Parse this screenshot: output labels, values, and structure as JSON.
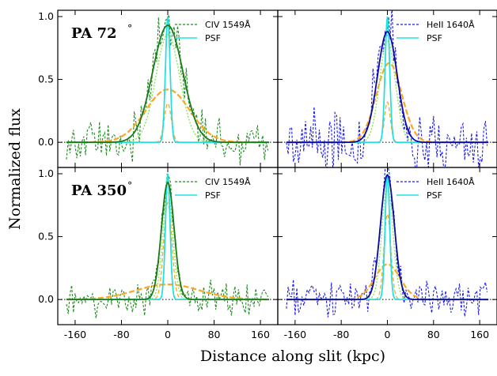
{
  "chart_data": {
    "type": "line",
    "xlabel": "Distance along slit (kpc)",
    "ylabel": "Normalized flux",
    "xlim": [
      -190,
      190
    ],
    "xticks": [
      -160,
      -80,
      0,
      80,
      160
    ],
    "yticks": [
      0.0,
      0.5,
      1.0
    ],
    "colors": {
      "civ_data": "#1e8c1e",
      "civ_fit": "#1a7a1a",
      "heii_data": "#1a1aee",
      "heii_fit": "#0a0aa0",
      "psf": "#22e0e0",
      "component": "#ffa520",
      "component2": "#88e850"
    },
    "panels": [
      {
        "id": "pa72-civ",
        "pa_label": "PA 72",
        "degree": "°",
        "ylim": [
          -0.2,
          1.05
        ],
        "show_pa": true,
        "legend": [
          "CIV 1549Å",
          "PSF"
        ],
        "line": "civ",
        "fit": {
          "amp": 0.93,
          "sigma": 26,
          "center": 0
        },
        "comp_broad": {
          "amp": 0.42,
          "sigma": 38,
          "center": 0
        },
        "comp_narrow": {
          "amp": 0.31,
          "sigma": 6,
          "center": 0
        },
        "noise_amp": 0.09
      },
      {
        "id": "pa72-heii",
        "ylim": [
          -0.2,
          1.05
        ],
        "show_pa": false,
        "legend": [
          "HeII 1640Å",
          "PSF"
        ],
        "line": "heii",
        "fit": {
          "amp": 0.88,
          "sigma": 17,
          "center": 0
        },
        "comp_broad": {
          "amp": 0.63,
          "sigma": 22,
          "center": 3
        },
        "comp_narrow": {
          "amp": 0.32,
          "sigma": 5,
          "center": 0
        },
        "noise_amp": 0.13
      },
      {
        "id": "pa350-civ",
        "pa_label": "PA 350",
        "degree": "°",
        "ylim": [
          -0.2,
          1.05
        ],
        "show_pa": true,
        "legend": [
          "CIV 1549Å",
          "PSF"
        ],
        "line": "civ",
        "fit": {
          "amp": 0.93,
          "sigma": 11,
          "center": 0
        },
        "comp_broad": {
          "amp": 0.12,
          "sigma": 55,
          "center": 0
        },
        "comp_narrow": {
          "amp": 0.77,
          "sigma": 7,
          "center": 0
        },
        "noise_amp": 0.07
      },
      {
        "id": "pa350-heii",
        "ylim": [
          -0.2,
          1.05
        ],
        "show_pa": false,
        "legend": [
          "HeII 1640Å",
          "PSF"
        ],
        "line": "heii",
        "fit": {
          "amp": 0.99,
          "sigma": 12,
          "center": 0
        },
        "comp_broad": {
          "amp": 0.28,
          "sigma": 22,
          "center": 0
        },
        "comp_narrow": {
          "amp": 0.68,
          "sigma": 6,
          "center": 0
        },
        "noise_amp": 0.07
      }
    ]
  }
}
